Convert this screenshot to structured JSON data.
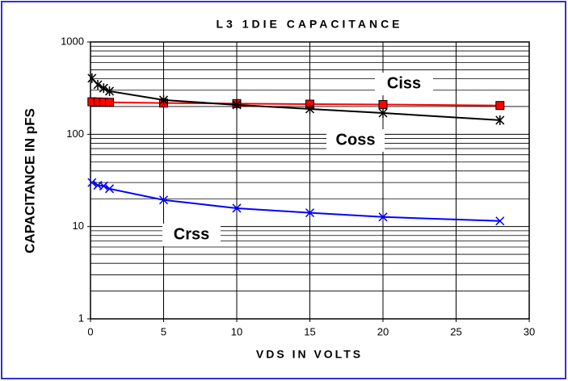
{
  "chart_data": {
    "type": "line",
    "title": "L3 1DIE CAPACITANCE",
    "xlabel": "VDS IN VOLTS",
    "ylabel": "CAPACITANCE IN pFS",
    "x": [
      0.1,
      0.5,
      0.9,
      1.3,
      5,
      10,
      15,
      20,
      28
    ],
    "series": [
      {
        "name": "Ciss",
        "color": "#ff0000",
        "marker": "square",
        "values": [
          225,
          224,
          223,
          222,
          218,
          215,
          212,
          210,
          205
        ]
      },
      {
        "name": "Coss",
        "color": "#000000",
        "marker": "star",
        "values": [
          405,
          344,
          316,
          293,
          235,
          208,
          188,
          170,
          142
        ]
      },
      {
        "name": "Crss",
        "color": "#0000ff",
        "marker": "x",
        "values": [
          30,
          28,
          27.5,
          25.7,
          19.4,
          15.8,
          14.1,
          12.7,
          11.5
        ]
      }
    ],
    "xlim": [
      0,
      30
    ],
    "xticks": [
      0,
      5,
      10,
      15,
      20,
      25,
      30
    ],
    "ylim": [
      1,
      1000
    ],
    "yticks": [
      1,
      10,
      100,
      1000
    ],
    "ylog": true,
    "grid": true
  }
}
